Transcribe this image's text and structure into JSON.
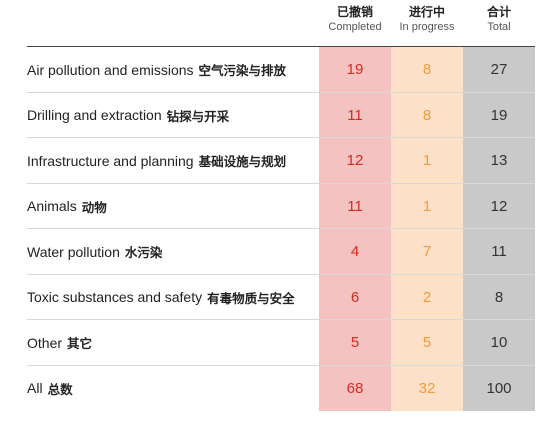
{
  "header": {
    "completed": {
      "zh": "已撤销",
      "en": "Completed"
    },
    "progress": {
      "zh": "进行中",
      "en": "In progress"
    },
    "total": {
      "zh": "合计",
      "en": "Total"
    }
  },
  "colors": {
    "completed_bg": "#f4c2c0",
    "completed_text": "#d62b1f",
    "progress_bg": "#fde0c8",
    "progress_text": "#f39a3e",
    "total_bg": "#c9c9c9"
  },
  "chart_data": {
    "type": "table",
    "columns": [
      "Completed",
      "In progress",
      "Total"
    ],
    "rows": [
      {
        "en": "Air pollution and emissions",
        "zh": "空气污染与排放",
        "completed": 19,
        "progress": 8,
        "total": 27
      },
      {
        "en": "Drilling and extraction",
        "zh": "钻探与开采",
        "completed": 11,
        "progress": 8,
        "total": 19
      },
      {
        "en": "Infrastructure and planning",
        "zh": "基础设施与规划",
        "completed": 12,
        "progress": 1,
        "total": 13
      },
      {
        "en": "Animals",
        "zh": "动物",
        "completed": 11,
        "progress": 1,
        "total": 12
      },
      {
        "en": "Water pollution",
        "zh": "水污染",
        "completed": 4,
        "progress": 7,
        "total": 11
      },
      {
        "en": "Toxic substances and safety",
        "zh": "有毒物质与安全",
        "completed": 6,
        "progress": 2,
        "total": 8
      },
      {
        "en": "Other",
        "zh": "其它",
        "completed": 5,
        "progress": 5,
        "total": 10
      },
      {
        "en": "All",
        "zh": "总数",
        "completed": 68,
        "progress": 32,
        "total": 100
      }
    ]
  }
}
